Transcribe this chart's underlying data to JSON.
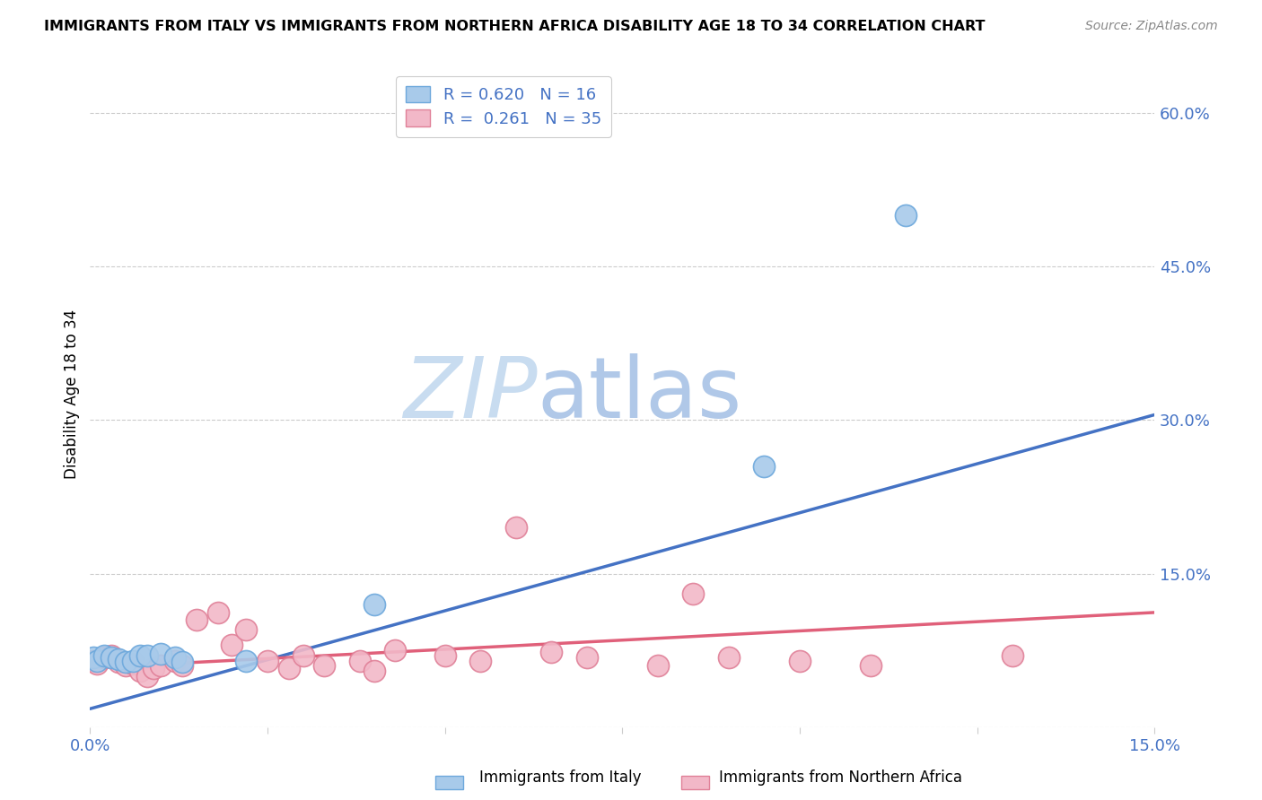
{
  "title": "IMMIGRANTS FROM ITALY VS IMMIGRANTS FROM NORTHERN AFRICA DISABILITY AGE 18 TO 34 CORRELATION CHART",
  "source": "Source: ZipAtlas.com",
  "ylabel": "Disability Age 18 to 34",
  "xlim": [
    0.0,
    0.15
  ],
  "ylim": [
    0.0,
    0.65
  ],
  "ytick_positions": [
    0.0,
    0.15,
    0.3,
    0.45,
    0.6
  ],
  "ytick_labels": [
    "",
    "15.0%",
    "30.0%",
    "45.0%",
    "60.0%"
  ],
  "xtick_positions": [
    0.0,
    0.025,
    0.05,
    0.075,
    0.1,
    0.125,
    0.15
  ],
  "xtick_labels": [
    "0.0%",
    "",
    "",
    "",
    "",
    "",
    "15.0%"
  ],
  "italy_color": "#A8CAEA",
  "italy_edge": "#6DA8DC",
  "italy_R": 0.62,
  "italy_N": 16,
  "italy_line_color": "#4472C4",
  "italy_line_x0": 0.0,
  "italy_line_y0": 0.018,
  "italy_line_x1": 0.15,
  "italy_line_y1": 0.305,
  "na_color": "#F2B8C8",
  "na_edge": "#E08098",
  "na_R": 0.261,
  "na_N": 35,
  "na_line_color": "#E0607A",
  "na_line_x0": 0.0,
  "na_line_y0": 0.058,
  "na_line_x1": 0.15,
  "na_line_y1": 0.112,
  "watermark_zip": "ZIP",
  "watermark_atlas": "atlas",
  "italy_x": [
    0.0005,
    0.001,
    0.002,
    0.003,
    0.004,
    0.005,
    0.006,
    0.007,
    0.008,
    0.01,
    0.012,
    0.013,
    0.022,
    0.04,
    0.095,
    0.115
  ],
  "italy_y": [
    0.068,
    0.065,
    0.07,
    0.068,
    0.066,
    0.064,
    0.065,
    0.07,
    0.07,
    0.072,
    0.068,
    0.064,
    0.065,
    0.12,
    0.255,
    0.5
  ],
  "na_x": [
    0.0005,
    0.001,
    0.002,
    0.003,
    0.004,
    0.005,
    0.006,
    0.007,
    0.008,
    0.009,
    0.01,
    0.012,
    0.013,
    0.015,
    0.018,
    0.02,
    0.022,
    0.025,
    0.028,
    0.03,
    0.033,
    0.038,
    0.04,
    0.043,
    0.05,
    0.055,
    0.06,
    0.065,
    0.07,
    0.08,
    0.085,
    0.09,
    0.1,
    0.11,
    0.13
  ],
  "na_y": [
    0.065,
    0.062,
    0.068,
    0.07,
    0.064,
    0.06,
    0.062,
    0.055,
    0.05,
    0.058,
    0.06,
    0.065,
    0.06,
    0.105,
    0.112,
    0.08,
    0.095,
    0.065,
    0.058,
    0.07,
    0.06,
    0.065,
    0.055,
    0.075,
    0.07,
    0.065,
    0.195,
    0.073,
    0.068,
    0.06,
    0.13,
    0.068,
    0.065,
    0.06,
    0.07
  ],
  "grid_color": "#CCCCCC",
  "bg_color": "#FFFFFF",
  "axis_color": "#4472C4"
}
